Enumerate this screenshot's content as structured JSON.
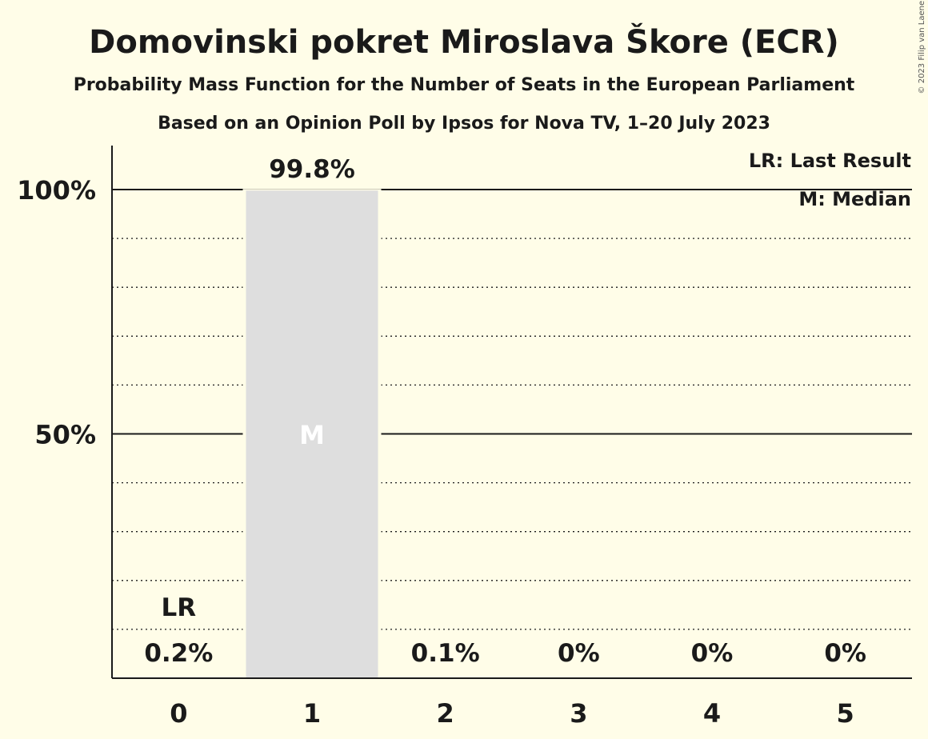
{
  "chart_data": {
    "type": "bar",
    "title": "Domovinski pokret Miroslava Škore (ECR)",
    "subtitle": "Probability Mass Function for the Number of Seats in the European Parliament",
    "subtitle2": "Based on an Opinion Poll by Ipsos for Nova TV, 1–20 July 2023",
    "categories": [
      "0",
      "1",
      "2",
      "3",
      "4",
      "5"
    ],
    "values": [
      0.2,
      99.8,
      0.1,
      0,
      0,
      0
    ],
    "value_labels": [
      "0.2%",
      "99.8%",
      "0.1%",
      "0%",
      "0%",
      "0%"
    ],
    "ylim": [
      0,
      110
    ],
    "yticks": [
      {
        "value": 50,
        "label": "50%"
      },
      {
        "value": 100,
        "label": "100%"
      }
    ],
    "minor_gridlines": [
      10,
      20,
      30,
      40,
      60,
      70,
      80,
      90
    ],
    "last_result_index": 0,
    "last_result_marker": "LR",
    "median_index": 1,
    "median_marker": "M",
    "legend": {
      "placement": "top-right",
      "entries": [
        "LR: Last Result",
        "M: Median"
      ]
    },
    "bar_color": "#dedede",
    "background_color": "#fffde8",
    "copyright": "© 2023 Filip van Laenen"
  }
}
